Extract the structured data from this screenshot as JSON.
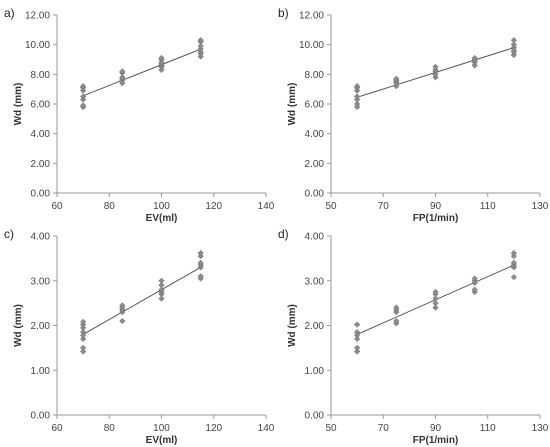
{
  "chart_data": [
    {
      "type": "scatter",
      "panel_label": "a)",
      "xlabel": "EV(ml)",
      "ylabel": "Wd (mm)",
      "xlim": [
        60,
        140
      ],
      "ylim": [
        0,
        12
      ],
      "x_ticks": [
        "60",
        "80",
        "100",
        "120",
        "140"
      ],
      "y_ticks": [
        "0.00",
        "2.00",
        "4.00",
        "6.00",
        "8.00",
        "10.00",
        "12.00"
      ],
      "grid": false,
      "marker_color": "#8c8c8c",
      "line_color": "#555555",
      "points": [
        [
          70,
          5.8
        ],
        [
          70,
          5.9
        ],
        [
          70,
          6.3
        ],
        [
          70,
          6.5
        ],
        [
          70,
          6.9
        ],
        [
          70,
          7.1
        ],
        [
          70,
          7.2
        ],
        [
          85,
          7.4
        ],
        [
          85,
          7.6
        ],
        [
          85,
          7.7
        ],
        [
          85,
          7.8
        ],
        [
          85,
          8.1
        ],
        [
          85,
          8.2
        ],
        [
          100,
          8.3
        ],
        [
          100,
          8.5
        ],
        [
          100,
          8.6
        ],
        [
          100,
          8.7
        ],
        [
          100,
          8.8
        ],
        [
          100,
          9.0
        ],
        [
          100,
          9.1
        ],
        [
          115,
          9.2
        ],
        [
          115,
          9.4
        ],
        [
          115,
          9.5
        ],
        [
          115,
          9.7
        ],
        [
          115,
          9.9
        ],
        [
          115,
          10.2
        ],
        [
          115,
          10.3
        ]
      ],
      "trendline": [
        [
          70,
          6.55
        ],
        [
          115,
          9.7
        ]
      ]
    },
    {
      "type": "scatter",
      "panel_label": "b)",
      "xlabel": "FP(1/min)",
      "ylabel": "Wd (mm)",
      "xlim": [
        50,
        130
      ],
      "ylim": [
        0,
        12
      ],
      "x_ticks": [
        "50",
        "70",
        "90",
        "110",
        "130"
      ],
      "y_ticks": [
        "0.00",
        "2.00",
        "4.00",
        "6.00",
        "8.00",
        "10.00",
        "12.00"
      ],
      "grid": false,
      "marker_color": "#8c8c8c",
      "line_color": "#555555",
      "points": [
        [
          60,
          5.8
        ],
        [
          60,
          6.0
        ],
        [
          60,
          6.3
        ],
        [
          60,
          6.5
        ],
        [
          60,
          6.9
        ],
        [
          60,
          7.1
        ],
        [
          60,
          7.2
        ],
        [
          75,
          7.2
        ],
        [
          75,
          7.4
        ],
        [
          75,
          7.5
        ],
        [
          75,
          7.6
        ],
        [
          75,
          7.7
        ],
        [
          90,
          7.8
        ],
        [
          90,
          8.0
        ],
        [
          90,
          8.2
        ],
        [
          90,
          8.3
        ],
        [
          90,
          8.5
        ],
        [
          105,
          8.6
        ],
        [
          105,
          8.8
        ],
        [
          105,
          8.9
        ],
        [
          105,
          9.0
        ],
        [
          105,
          9.1
        ],
        [
          120,
          9.3
        ],
        [
          120,
          9.5
        ],
        [
          120,
          9.6
        ],
        [
          120,
          9.8
        ],
        [
          120,
          10.0
        ],
        [
          120,
          10.3
        ]
      ],
      "trendline": [
        [
          60,
          6.45
        ],
        [
          120,
          9.8
        ]
      ]
    },
    {
      "type": "scatter",
      "panel_label": "c)",
      "xlabel": "EV(ml)",
      "ylabel": "Wd (mm)",
      "xlim": [
        60,
        140
      ],
      "ylim": [
        0,
        4
      ],
      "x_ticks": [
        "60",
        "80",
        "100",
        "120",
        "140"
      ],
      "y_ticks": [
        "0.00",
        "1.00",
        "2.00",
        "3.00",
        "4.00"
      ],
      "grid": false,
      "marker_color": "#8c8c8c",
      "line_color": "#555555",
      "points": [
        [
          70,
          1.42
        ],
        [
          70,
          1.5
        ],
        [
          70,
          1.7
        ],
        [
          70,
          1.78
        ],
        [
          70,
          1.85
        ],
        [
          70,
          1.95
        ],
        [
          70,
          2.02
        ],
        [
          70,
          2.08
        ],
        [
          85,
          2.1
        ],
        [
          85,
          2.3
        ],
        [
          85,
          2.35
        ],
        [
          85,
          2.4
        ],
        [
          85,
          2.45
        ],
        [
          100,
          2.6
        ],
        [
          100,
          2.7
        ],
        [
          100,
          2.75
        ],
        [
          100,
          2.8
        ],
        [
          100,
          2.9
        ],
        [
          100,
          3.0
        ],
        [
          115,
          3.05
        ],
        [
          115,
          3.1
        ],
        [
          115,
          3.3
        ],
        [
          115,
          3.35
        ],
        [
          115,
          3.4
        ],
        [
          115,
          3.55
        ],
        [
          115,
          3.62
        ]
      ],
      "trendline": [
        [
          70,
          1.8
        ],
        [
          115,
          3.3
        ]
      ]
    },
    {
      "type": "scatter",
      "panel_label": "d)",
      "xlabel": "FP(1/min)",
      "ylabel": "Wd (mm)",
      "xlim": [
        50,
        130
      ],
      "ylim": [
        0,
        4
      ],
      "x_ticks": [
        "50",
        "70",
        "90",
        "110",
        "130"
      ],
      "y_ticks": [
        "0.00",
        "1.00",
        "2.00",
        "3.00",
        "4.00"
      ],
      "grid": false,
      "marker_color": "#8c8c8c",
      "line_color": "#555555",
      "points": [
        [
          60,
          1.42
        ],
        [
          60,
          1.5
        ],
        [
          60,
          1.7
        ],
        [
          60,
          1.78
        ],
        [
          60,
          1.85
        ],
        [
          60,
          2.02
        ],
        [
          75,
          2.05
        ],
        [
          75,
          2.1
        ],
        [
          75,
          2.3
        ],
        [
          75,
          2.35
        ],
        [
          75,
          2.4
        ],
        [
          90,
          2.4
        ],
        [
          90,
          2.5
        ],
        [
          90,
          2.6
        ],
        [
          90,
          2.7
        ],
        [
          90,
          2.75
        ],
        [
          105,
          2.75
        ],
        [
          105,
          2.8
        ],
        [
          105,
          2.95
        ],
        [
          105,
          3.0
        ],
        [
          105,
          3.05
        ],
        [
          120,
          3.08
        ],
        [
          120,
          3.3
        ],
        [
          120,
          3.35
        ],
        [
          120,
          3.4
        ],
        [
          120,
          3.55
        ],
        [
          120,
          3.62
        ]
      ],
      "trendline": [
        [
          60,
          1.8
        ],
        [
          120,
          3.35
        ]
      ]
    }
  ]
}
